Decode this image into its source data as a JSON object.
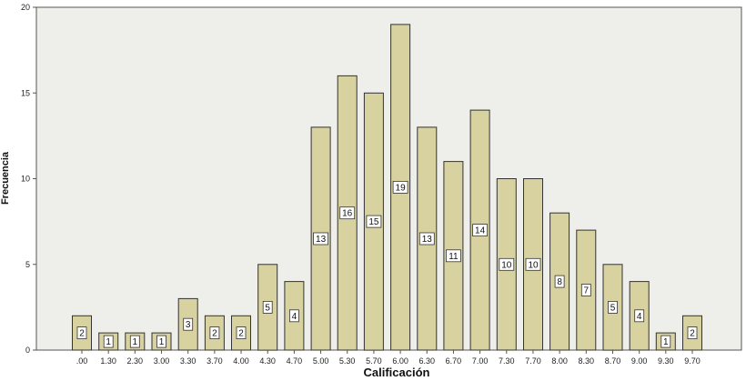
{
  "chart_data": {
    "type": "bar",
    "title": "",
    "xlabel": "Calificación",
    "ylabel": "Frecuencia",
    "ylim": [
      0,
      20
    ],
    "yticks": [
      "0",
      "5",
      "10",
      "15",
      "20"
    ],
    "grid": false,
    "categories": [
      ".00",
      "1.30",
      "2.30",
      "3.00",
      "3.30",
      "3.70",
      "4.00",
      "4.30",
      "4.70",
      "5.00",
      "5.30",
      "5.70",
      "6.00",
      "6.30",
      "6.70",
      "7.00",
      "7.30",
      "7.70",
      "8.00",
      "8.30",
      "8.70",
      "9.00",
      "9.30",
      "9.70"
    ],
    "values": [
      2,
      1,
      1,
      1,
      3,
      2,
      2,
      5,
      4,
      13,
      16,
      15,
      19,
      13,
      11,
      14,
      10,
      10,
      8,
      7,
      5,
      4,
      1,
      2
    ],
    "data_labels": [
      "2",
      "1",
      "1",
      "1",
      "3",
      "2",
      "2",
      "5",
      "4",
      "13",
      "16",
      "15",
      "19",
      "13",
      "11",
      "14",
      "10",
      "10",
      "8",
      "7",
      "5",
      "4",
      "1",
      "2"
    ],
    "colors": {
      "plot_background": "#eeeeea",
      "bar_fill": "#d8d2a0",
      "bar_stroke": "#333333",
      "axis": "#555555"
    }
  }
}
